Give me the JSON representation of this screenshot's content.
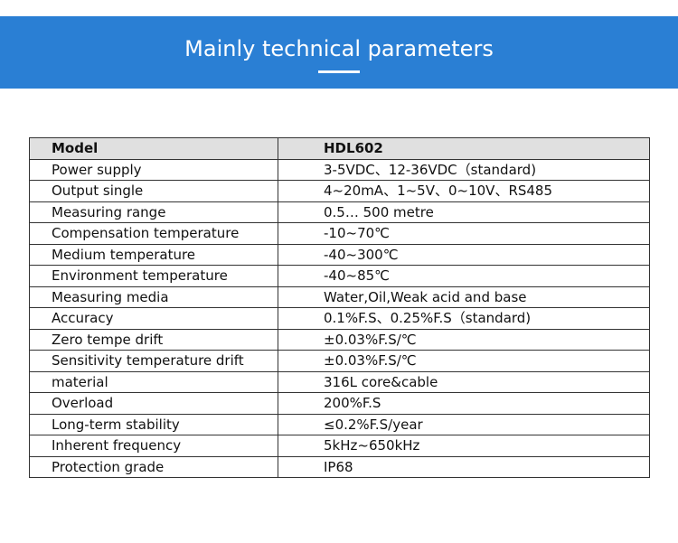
{
  "header": {
    "title": "Mainly technical parameters"
  },
  "table": {
    "header": [
      "Model",
      "HDL602"
    ],
    "rows": [
      [
        "Power supply",
        "3-5VDC、12-36VDC（standard)"
      ],
      [
        "Output single",
        "4~20mA、1~5V、0~10V、RS485"
      ],
      [
        "Measuring range",
        "0.5… 500 metre"
      ],
      [
        "Compensation temperature",
        "-10~70℃"
      ],
      [
        "Medium temperature",
        "-40~300℃"
      ],
      [
        "Environment temperature",
        "-40~85℃"
      ],
      [
        "Measuring media",
        "Water,Oil,Weak acid and base"
      ],
      [
        "Accuracy",
        "0.1%F.S、0.25%F.S（standard)"
      ],
      [
        "Zero tempe drift",
        "±0.03%F.S/℃"
      ],
      [
        "Sensitivity temperature drift",
        "±0.03%F.S/℃"
      ],
      [
        "material",
        "316L core&cable"
      ],
      [
        "Overload",
        "200%F.S"
      ],
      [
        "Long-term stability",
        "≤0.2%F.S/year"
      ],
      [
        "Inherent frequency",
        "5kHz~650kHz"
      ],
      [
        "Protection grade",
        "IP68"
      ]
    ]
  }
}
